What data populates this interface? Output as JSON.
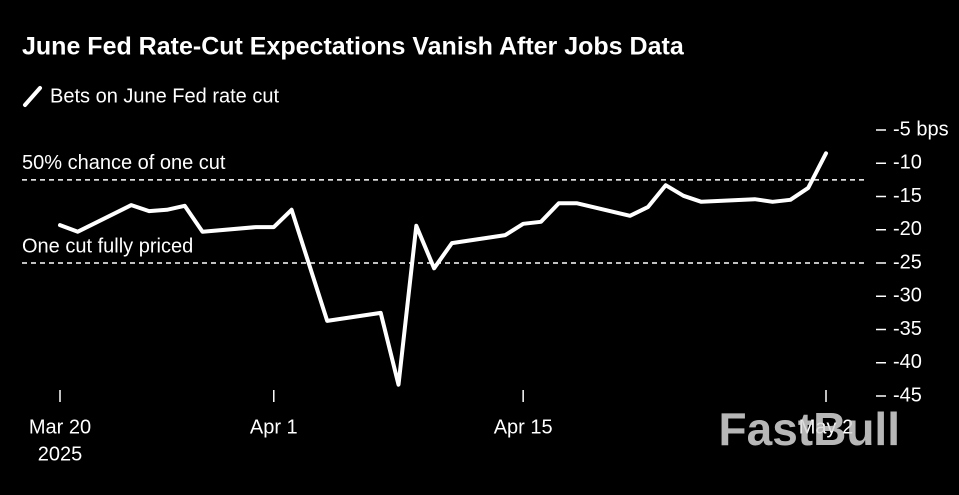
{
  "chart_data": {
    "type": "line",
    "title": "June Fed Rate-Cut Expectations Vanish After Jobs Data",
    "series": [
      {
        "name": "Bets on June Fed rate cut",
        "color": "#ffffff",
        "values": [
          -19.3,
          -20.3,
          -16.3,
          -17.2,
          -17.0,
          -16.4,
          -20.3,
          -19.6,
          -19.6,
          -17.0,
          -33.7,
          -32.5,
          -43.3,
          -19.4,
          -25.8,
          -22.0,
          -20.8,
          -19.1,
          -18.8,
          -16.0,
          -16.0,
          -17.9,
          -16.6,
          -13.3,
          -14.9,
          -15.8,
          -15.4,
          -15.8,
          -15.5,
          -13.7,
          -8.5
        ]
      }
    ],
    "x": [
      "2025-03-20",
      "2025-03-21",
      "2025-03-24",
      "2025-03-25",
      "2025-03-26",
      "2025-03-27",
      "2025-03-28",
      "2025-03-31",
      "2025-04-01",
      "2025-04-02",
      "2025-04-04",
      "2025-04-07",
      "2025-04-08",
      "2025-04-09",
      "2025-04-10",
      "2025-04-11",
      "2025-04-14",
      "2025-04-15",
      "2025-04-16",
      "2025-04-17",
      "2025-04-18",
      "2025-04-21",
      "2025-04-22",
      "2025-04-23",
      "2025-04-24",
      "2025-04-25",
      "2025-04-28",
      "2025-04-29",
      "2025-04-30",
      "2025-05-01",
      "2025-05-02"
    ],
    "xlim": [
      "2025-03-20",
      "2025-05-02"
    ],
    "xticks": [
      {
        "value": "2025-03-20",
        "label": "Mar 20"
      },
      {
        "value": "2025-04-01",
        "label": "Apr 1"
      },
      {
        "value": "2025-04-15",
        "label": "Apr 15"
      },
      {
        "value": "2025-05-02",
        "label": "May 2"
      }
    ],
    "x_year_label": "2025",
    "ylim": [
      -45,
      -5
    ],
    "yticks": [
      {
        "value": -5,
        "label": "-5 bps"
      },
      -10,
      -15,
      -20,
      -25,
      -30,
      -35,
      -40,
      -45
    ],
    "y_axis_side": "right",
    "annotations": [
      {
        "text": "50% chance of one cut",
        "y": -12.5
      },
      {
        "text": "One cut fully priced",
        "y": -25
      }
    ],
    "watermark": "FastBull"
  }
}
